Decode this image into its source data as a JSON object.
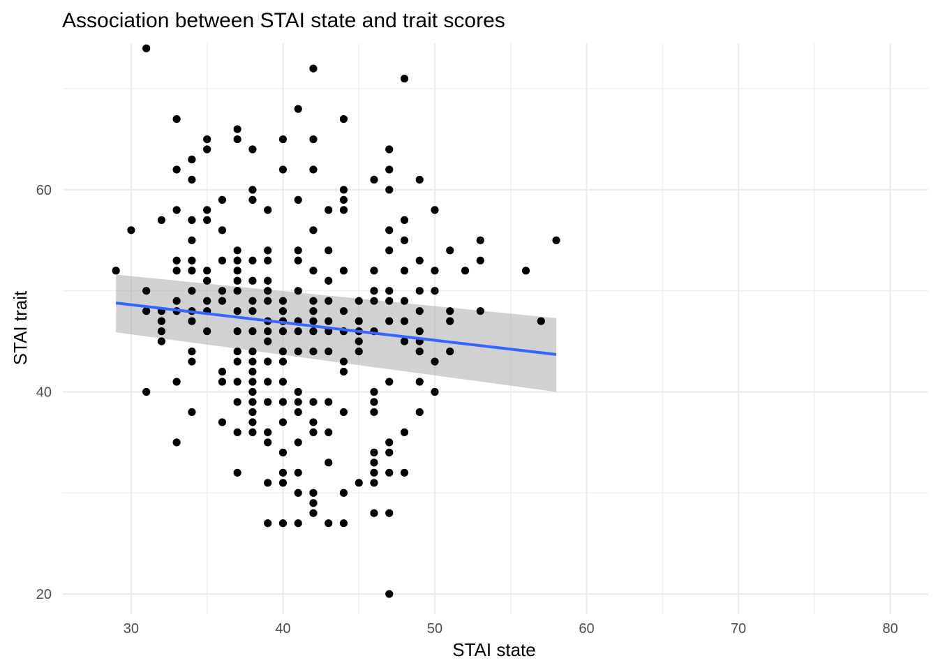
{
  "chart_data": {
    "type": "scatter",
    "title": "Association between STAI state and trait scores",
    "xlabel": "STAI state",
    "ylabel": "STAI trait",
    "xlim": [
      25.5,
      82.5
    ],
    "ylim": [
      18.0,
      74.5
    ],
    "xticks": [
      30,
      40,
      50,
      60,
      70,
      80
    ],
    "yticks": [
      20,
      40,
      60
    ],
    "grid": true,
    "legend": "none",
    "colors": {
      "points": "#000000",
      "fit_line": "#3366FF",
      "ci_band": "#999999"
    },
    "points": [
      [
        29,
        52
      ],
      [
        30,
        56
      ],
      [
        31,
        74
      ],
      [
        31,
        50
      ],
      [
        31,
        48
      ],
      [
        31,
        40
      ],
      [
        32,
        57
      ],
      [
        32,
        48
      ],
      [
        32,
        47
      ],
      [
        32,
        46
      ],
      [
        32,
        45
      ],
      [
        33,
        67
      ],
      [
        33,
        62
      ],
      [
        33,
        58
      ],
      [
        33,
        53
      ],
      [
        33,
        52
      ],
      [
        33,
        49
      ],
      [
        33,
        48
      ],
      [
        33,
        41
      ],
      [
        33,
        35
      ],
      [
        34,
        63
      ],
      [
        34,
        61
      ],
      [
        34,
        57
      ],
      [
        34,
        55
      ],
      [
        34,
        53
      ],
      [
        34,
        52
      ],
      [
        34,
        50
      ],
      [
        34,
        48
      ],
      [
        34,
        47
      ],
      [
        34,
        44
      ],
      [
        34,
        43
      ],
      [
        34,
        38
      ],
      [
        35,
        65
      ],
      [
        35,
        64
      ],
      [
        35,
        58
      ],
      [
        35,
        57
      ],
      [
        35,
        52
      ],
      [
        35,
        51
      ],
      [
        35,
        49
      ],
      [
        35,
        48
      ],
      [
        35,
        46
      ],
      [
        36,
        59
      ],
      [
        36,
        56
      ],
      [
        36,
        53
      ],
      [
        36,
        50
      ],
      [
        36,
        49
      ],
      [
        36,
        42
      ],
      [
        36,
        41
      ],
      [
        36,
        37
      ],
      [
        37,
        66
      ],
      [
        37,
        65
      ],
      [
        37,
        54
      ],
      [
        37,
        53
      ],
      [
        37,
        52
      ],
      [
        37,
        51
      ],
      [
        37,
        50
      ],
      [
        37,
        48
      ],
      [
        37,
        46
      ],
      [
        37,
        44
      ],
      [
        37,
        43
      ],
      [
        37,
        41
      ],
      [
        37,
        39
      ],
      [
        37,
        36
      ],
      [
        37,
        32
      ],
      [
        38,
        64
      ],
      [
        38,
        60
      ],
      [
        38,
        59
      ],
      [
        38,
        53
      ],
      [
        38,
        51
      ],
      [
        38,
        49
      ],
      [
        38,
        48
      ],
      [
        38,
        46
      ],
      [
        38,
        44
      ],
      [
        38,
        43
      ],
      [
        38,
        42
      ],
      [
        38,
        41
      ],
      [
        38,
        40
      ],
      [
        38,
        39
      ],
      [
        38,
        38
      ],
      [
        38,
        37
      ],
      [
        38,
        36
      ],
      [
        39,
        58
      ],
      [
        39,
        54
      ],
      [
        39,
        53
      ],
      [
        39,
        51
      ],
      [
        39,
        50
      ],
      [
        39,
        49
      ],
      [
        39,
        47
      ],
      [
        39,
        46
      ],
      [
        39,
        45
      ],
      [
        39,
        43
      ],
      [
        39,
        41
      ],
      [
        39,
        39
      ],
      [
        39,
        36
      ],
      [
        39,
        35
      ],
      [
        39,
        31
      ],
      [
        39,
        27
      ],
      [
        40,
        65
      ],
      [
        40,
        62
      ],
      [
        40,
        49
      ],
      [
        40,
        48
      ],
      [
        40,
        47
      ],
      [
        40,
        46
      ],
      [
        40,
        44
      ],
      [
        40,
        43
      ],
      [
        40,
        41
      ],
      [
        40,
        39
      ],
      [
        40,
        37
      ],
      [
        40,
        34
      ],
      [
        40,
        32
      ],
      [
        40,
        31
      ],
      [
        40,
        27
      ],
      [
        41,
        68
      ],
      [
        41,
        59
      ],
      [
        41,
        54
      ],
      [
        41,
        53
      ],
      [
        41,
        50
      ],
      [
        41,
        47
      ],
      [
        41,
        46
      ],
      [
        41,
        44
      ],
      [
        41,
        40
      ],
      [
        41,
        39
      ],
      [
        41,
        38
      ],
      [
        41,
        35
      ],
      [
        41,
        32
      ],
      [
        41,
        30
      ],
      [
        41,
        27
      ],
      [
        42,
        72
      ],
      [
        42,
        65
      ],
      [
        42,
        62
      ],
      [
        42,
        56
      ],
      [
        42,
        52
      ],
      [
        42,
        49
      ],
      [
        42,
        48
      ],
      [
        42,
        47
      ],
      [
        42,
        46
      ],
      [
        42,
        44
      ],
      [
        42,
        39
      ],
      [
        42,
        37
      ],
      [
        42,
        36
      ],
      [
        42,
        30
      ],
      [
        42,
        29
      ],
      [
        42,
        28
      ],
      [
        43,
        58
      ],
      [
        43,
        54
      ],
      [
        43,
        51
      ],
      [
        43,
        49
      ],
      [
        43,
        47
      ],
      [
        43,
        46
      ],
      [
        43,
        44
      ],
      [
        43,
        39
      ],
      [
        43,
        36
      ],
      [
        43,
        33
      ],
      [
        43,
        27
      ],
      [
        44,
        67
      ],
      [
        44,
        60
      ],
      [
        44,
        59
      ],
      [
        44,
        58
      ],
      [
        44,
        52
      ],
      [
        44,
        48
      ],
      [
        44,
        46
      ],
      [
        44,
        43
      ],
      [
        44,
        42
      ],
      [
        44,
        38
      ],
      [
        44,
        30
      ],
      [
        44,
        27
      ],
      [
        45,
        49
      ],
      [
        45,
        47
      ],
      [
        45,
        46
      ],
      [
        45,
        45
      ],
      [
        45,
        44
      ],
      [
        45,
        31
      ],
      [
        46,
        61
      ],
      [
        46,
        52
      ],
      [
        46,
        50
      ],
      [
        46,
        49
      ],
      [
        46,
        46
      ],
      [
        46,
        40
      ],
      [
        46,
        39
      ],
      [
        46,
        38
      ],
      [
        46,
        34
      ],
      [
        46,
        33
      ],
      [
        46,
        32
      ],
      [
        46,
        31
      ],
      [
        46,
        28
      ],
      [
        47,
        64
      ],
      [
        47,
        62
      ],
      [
        47,
        60
      ],
      [
        47,
        56
      ],
      [
        47,
        54
      ],
      [
        47,
        50
      ],
      [
        47,
        49
      ],
      [
        47,
        47
      ],
      [
        47,
        41
      ],
      [
        47,
        35
      ],
      [
        47,
        34
      ],
      [
        47,
        32
      ],
      [
        47,
        28
      ],
      [
        47,
        20
      ],
      [
        48,
        71
      ],
      [
        48,
        57
      ],
      [
        48,
        55
      ],
      [
        48,
        52
      ],
      [
        48,
        49
      ],
      [
        48,
        47
      ],
      [
        48,
        45
      ],
      [
        48,
        36
      ],
      [
        48,
        32
      ],
      [
        49,
        61
      ],
      [
        49,
        53
      ],
      [
        49,
        50
      ],
      [
        49,
        48
      ],
      [
        49,
        46
      ],
      [
        49,
        45
      ],
      [
        49,
        44
      ],
      [
        49,
        41
      ],
      [
        49,
        38
      ],
      [
        50,
        58
      ],
      [
        50,
        52
      ],
      [
        50,
        50
      ],
      [
        50,
        43
      ],
      [
        50,
        40
      ],
      [
        51,
        54
      ],
      [
        51,
        48
      ],
      [
        51,
        47
      ],
      [
        51,
        44
      ],
      [
        52,
        52
      ],
      [
        53,
        55
      ],
      [
        53,
        53
      ],
      [
        53,
        48
      ],
      [
        56,
        52
      ],
      [
        57,
        47
      ],
      [
        58,
        55
      ]
    ],
    "fit": {
      "method": "lm",
      "x": [
        29,
        58
      ],
      "y": [
        48.8,
        43.7
      ],
      "ci_lower": [
        45.9,
        40.0
      ],
      "ci_upper": [
        51.6,
        47.3
      ]
    }
  }
}
